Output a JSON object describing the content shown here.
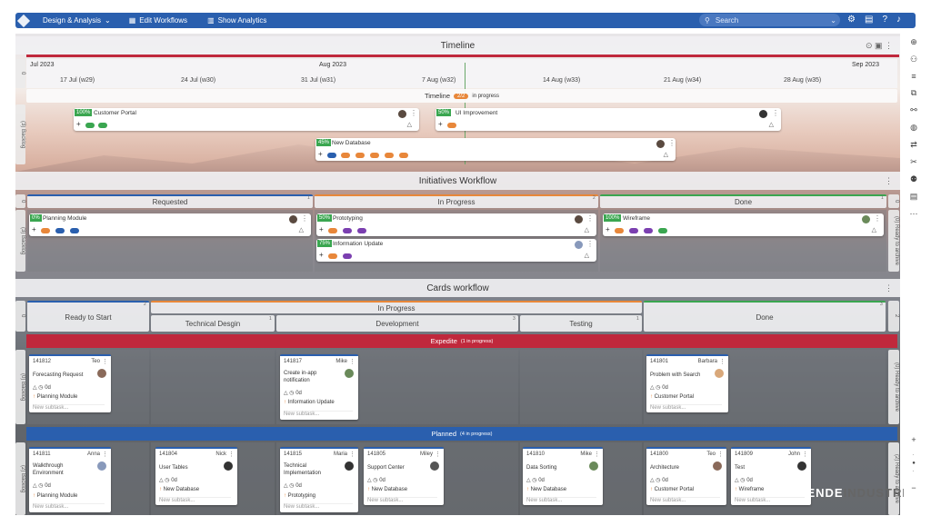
{
  "topbar": {
    "menu1": "Design & Analysis",
    "menu2": "Edit Workflows",
    "menu3": "Show Analytics",
    "search_placeholder": "Search"
  },
  "timeline": {
    "title": "Timeline",
    "months": [
      "Jul 2023",
      "Aug 2023",
      "Sep 2023"
    ],
    "weeks": [
      "17 Jul (w29)",
      "24 Jul (w30)",
      "31 Jul (w31)",
      "7 Aug (w32)",
      "14 Aug (w33)",
      "21 Aug (w34)",
      "28 Aug (w35)"
    ],
    "bar_label": "Timeline",
    "bar_count": "2/2",
    "bar_status": "in progress",
    "lane_label": "(3) Backlog",
    "lane_zero": "0",
    "cards": [
      {
        "pct": "100%",
        "title": "Customer Portal"
      },
      {
        "pct": "50%",
        "title": "UI Improvement"
      },
      {
        "pct": "45%",
        "title": "New Database"
      }
    ]
  },
  "initiatives": {
    "title": "Initiatives Workflow",
    "cols": [
      {
        "name": "Requested",
        "count": "1"
      },
      {
        "name": "In Progress",
        "count": "2"
      },
      {
        "name": "Done",
        "count": "1"
      }
    ],
    "lane_label": "(3) Backlog",
    "lane_right": "(0) Ready to archive",
    "zero": "0",
    "cards": [
      {
        "pct": "0%",
        "title": "Planning Module"
      },
      {
        "pct": "50%",
        "title": "Prototyping"
      },
      {
        "pct": "75%",
        "title": "Information Update"
      },
      {
        "pct": "100%",
        "title": "Wireframe"
      }
    ]
  },
  "cards_workflow": {
    "title": "Cards workflow",
    "cols": {
      "ready": "Ready to Start",
      "inprogress": "In Progress",
      "tech": "Technical Desgin",
      "dev": "Development",
      "testing": "Testing",
      "done": "Done"
    },
    "counts": {
      "ready": "2",
      "tech": "1",
      "dev": "3",
      "testing": "1",
      "done": "3"
    },
    "zero": "0",
    "right_num": "2",
    "expedite": {
      "label": "Expedite",
      "count": "(1 in progress)"
    },
    "planned": {
      "label": "Planned",
      "count": "(4 in progress)"
    },
    "lane_label": "(0) Backlog",
    "lane_right": "(0) Ready to archive",
    "lane_label2": "(2) Backlog",
    "lane_right2": "(2) Ready to archive",
    "days": "0d",
    "new_subtask": "New subtask...",
    "exp_cards": [
      {
        "id": "141812",
        "owner": "Teo",
        "title": "Forecasting Request",
        "parent": "Planning Module"
      },
      {
        "id": "141817",
        "owner": "Mike",
        "title": "Create in-app notification",
        "parent": "Information Update"
      },
      {
        "id": "141801",
        "owner": "Barbara",
        "title": "Problem with Search",
        "parent": "Customer Portal"
      }
    ],
    "plan_cards": [
      {
        "id": "141811",
        "owner": "Anna",
        "title": "Walkthrough Environment",
        "parent": "Planning Module"
      },
      {
        "id": "141804",
        "owner": "Nick",
        "title": "User Tables",
        "parent": "New Database"
      },
      {
        "id": "141815",
        "owner": "Maria",
        "title": "Technical Implementation",
        "parent": "Prototyping"
      },
      {
        "id": "141805",
        "owner": "Miley",
        "title": "Support Center",
        "parent": "New Database"
      },
      {
        "id": "141810",
        "owner": "Mike",
        "title": "Data Sorting",
        "parent": "New Database"
      },
      {
        "id": "141800",
        "owner": "Teo",
        "title": "Architecture",
        "parent": "Customer Portal"
      },
      {
        "id": "141809",
        "owner": "John",
        "title": "Test",
        "parent": "Wireframe"
      }
    ]
  },
  "watermark": {
    "a": "APRENDE",
    "b": "INDUSTRIA"
  },
  "colors": {
    "blue": "#2a5fae",
    "red": "#c0283c",
    "green": "#3aa650",
    "orange": "#e8873a",
    "purple": "#7b3fb0"
  }
}
